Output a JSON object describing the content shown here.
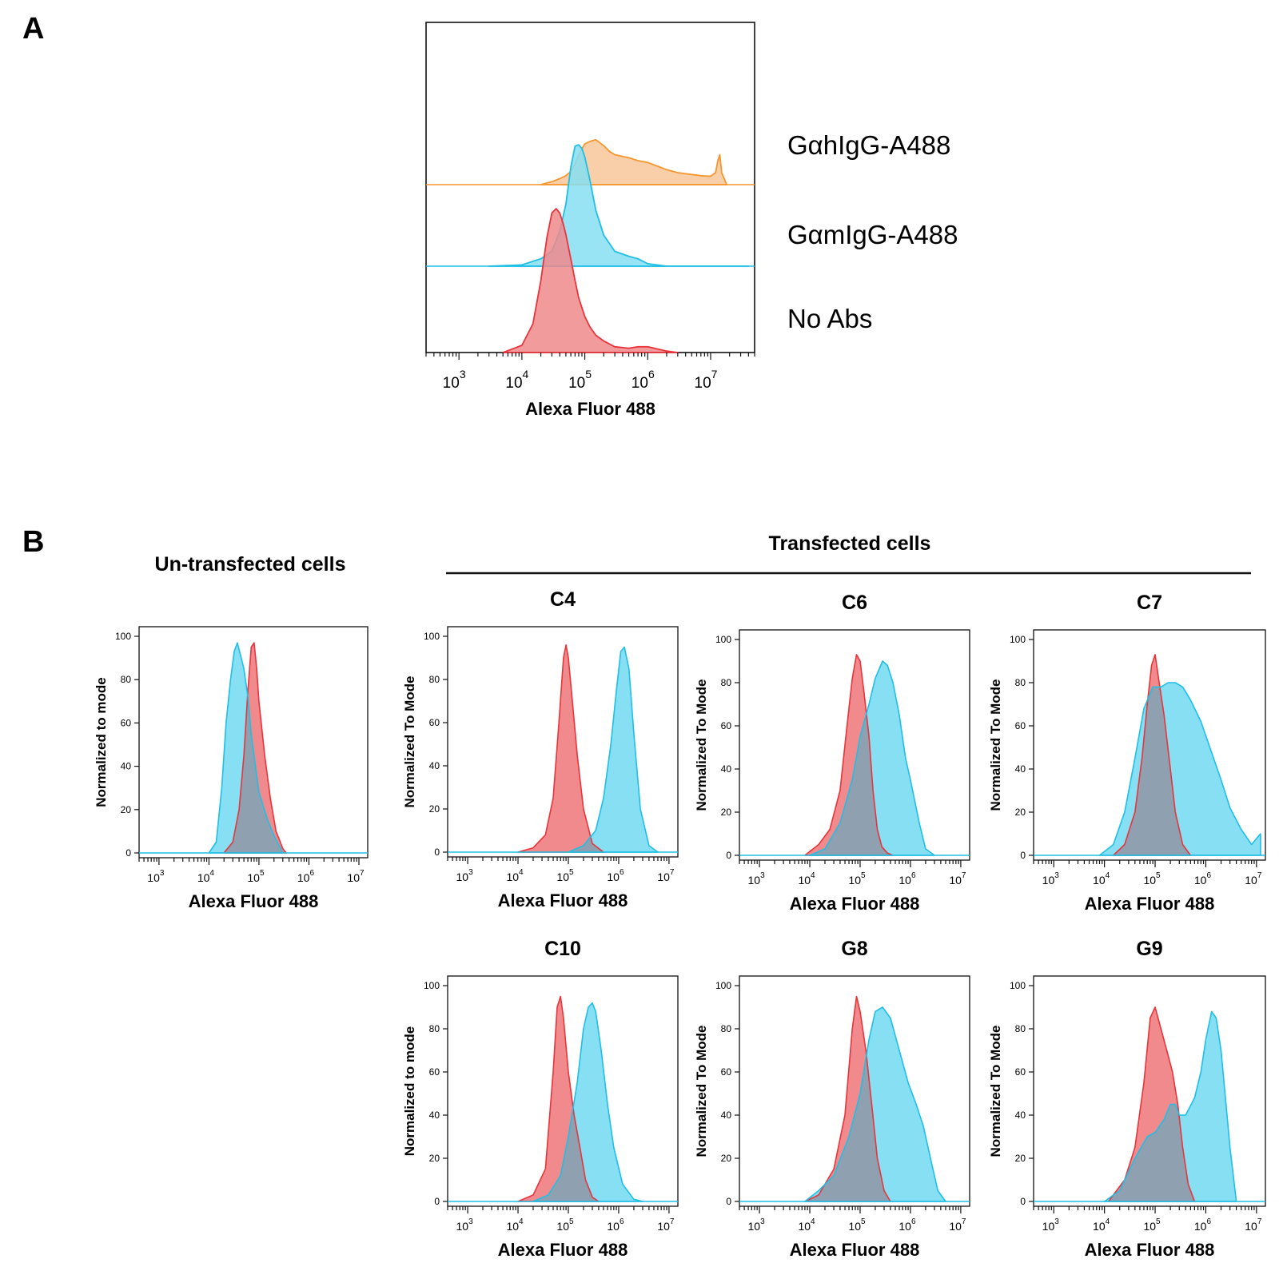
{
  "colors": {
    "red": "#e8343a",
    "red_fill": "#f08a8c",
    "cyan": "#1fbfe6",
    "cyan_fill": "#86dff3",
    "orange": "#f5962e",
    "orange_fill": "#f8c79a",
    "overlap_fill": "#8fa0b0"
  },
  "panel_a": {
    "letter": "A",
    "series_labels": [
      "GαhIgG-A488",
      "GαmIgG-A488",
      "No Abs"
    ]
  },
  "panel_b": {
    "letter": "B",
    "untransfected_title": "Un-transfected cells",
    "transfected_title": "Transfected cells"
  },
  "chart_data": [
    {
      "id": "A",
      "type": "area",
      "subtype": "offset-histogram",
      "xlabel": "Alexa Fluor 488",
      "x_scale": "log",
      "xlim": [
        300,
        50000000
      ],
      "x_ticks": [
        1000,
        10000,
        100000,
        1000000,
        10000000
      ],
      "x_tick_exps": [
        "3",
        "4",
        "5",
        "6",
        "7"
      ],
      "series": [
        {
          "name": "GαhIgG-A488",
          "color": "orange",
          "x": [
            20000,
            30000,
            40000,
            50000,
            60000,
            70000,
            80000,
            90000,
            100000,
            120000,
            150000,
            200000,
            250000,
            300000,
            400000,
            500000,
            700000,
            1000000,
            1500000,
            2000000,
            3000000,
            5000000,
            7000000,
            10000000,
            12000000,
            13000000,
            14000000,
            15000000,
            18000000
          ],
          "y": [
            0,
            5,
            10,
            15,
            22,
            35,
            50,
            60,
            68,
            72,
            75,
            65,
            55,
            50,
            47,
            45,
            40,
            37,
            30,
            25,
            20,
            17,
            15,
            14,
            20,
            40,
            50,
            20,
            0
          ]
        },
        {
          "name": "GαmIgG-A488",
          "color": "cyan",
          "x": [
            3000,
            10000,
            20000,
            30000,
            40000,
            50000,
            60000,
            70000,
            80000,
            90000,
            100000,
            120000,
            150000,
            200000,
            300000,
            500000,
            700000,
            1000000,
            2000000,
            10000000,
            40000000
          ],
          "y": [
            0,
            1,
            6,
            12,
            28,
            50,
            80,
            97,
            98,
            95,
            88,
            70,
            45,
            25,
            12,
            8,
            6,
            2,
            0,
            0,
            0
          ]
        },
        {
          "name": "No Abs",
          "color": "red",
          "x": [
            5000,
            10000,
            15000,
            20000,
            25000,
            30000,
            35000,
            40000,
            45000,
            50000,
            60000,
            70000,
            80000,
            100000,
            120000,
            150000,
            200000,
            300000,
            500000,
            700000,
            1000000,
            2000000,
            3000000
          ],
          "y": [
            0,
            5,
            20,
            50,
            80,
            97,
            100,
            97,
            90,
            82,
            65,
            50,
            38,
            25,
            18,
            12,
            8,
            4,
            3,
            4,
            4,
            1,
            0
          ]
        }
      ]
    },
    {
      "id": "Un-transfected",
      "type": "area",
      "subtype": "overlay-histogram",
      "xlabel": "Alexa Fluor 488",
      "ylabel": "Normalized to mode",
      "x_scale": "log",
      "xlim": [
        400,
        15000000
      ],
      "ylim": [
        0,
        100
      ],
      "x_ticks": [
        1000,
        10000,
        100000,
        1000000,
        10000000
      ],
      "x_tick_exps": [
        "3",
        "4",
        "5",
        "6",
        "7"
      ],
      "y_ticks": [
        "0",
        "20",
        "40",
        "60",
        "80",
        "100"
      ],
      "series": [
        {
          "color": "cyan",
          "x": [
            10000,
            14000,
            18000,
            22000,
            27000,
            32000,
            37000,
            42000,
            50000,
            60000,
            70000,
            85000,
            100000,
            150000,
            200000,
            300000
          ],
          "y": [
            0,
            5,
            30,
            60,
            80,
            93,
            97,
            92,
            85,
            72,
            55,
            40,
            28,
            15,
            8,
            0
          ]
        },
        {
          "color": "red",
          "x": [
            20000,
            30000,
            40000,
            50000,
            60000,
            70000,
            80000,
            90000,
            100000,
            130000,
            170000,
            220000,
            300000,
            350000
          ],
          "y": [
            0,
            5,
            20,
            45,
            75,
            95,
            97,
            85,
            70,
            45,
            25,
            10,
            2,
            0
          ]
        }
      ]
    },
    {
      "id": "C4",
      "title": "C4",
      "type": "area",
      "subtype": "overlay-histogram",
      "xlabel": "Alexa Fluor 488",
      "ylabel": "Normalized To Mode",
      "x_scale": "log",
      "xlim": [
        400,
        15000000
      ],
      "ylim": [
        0,
        100
      ],
      "x_ticks": [
        1000,
        10000,
        100000,
        1000000,
        10000000
      ],
      "x_tick_exps": [
        "3",
        "4",
        "5",
        "6",
        "7"
      ],
      "y_ticks": [
        "0",
        "20",
        "40",
        "60",
        "80",
        "100"
      ],
      "series": [
        {
          "color": "red",
          "x": [
            10000,
            20000,
            35000,
            50000,
            65000,
            80000,
            90000,
            100000,
            120000,
            150000,
            200000,
            300000,
            500000
          ],
          "y": [
            0,
            2,
            8,
            25,
            60,
            90,
            96,
            90,
            70,
            45,
            20,
            4,
            0
          ]
        },
        {
          "color": "cyan",
          "x": [
            100000,
            200000,
            350000,
            500000,
            700000,
            900000,
            1100000,
            1300000,
            1600000,
            2000000,
            2700000,
            4000000,
            6000000
          ],
          "y": [
            0,
            3,
            10,
            25,
            50,
            75,
            93,
            95,
            85,
            55,
            20,
            3,
            0
          ]
        }
      ]
    },
    {
      "id": "C6",
      "title": "C6",
      "type": "area",
      "subtype": "overlay-histogram",
      "xlabel": "Alexa Fluor 488",
      "ylabel": "Normalized To Mode",
      "x_scale": "log",
      "xlim": [
        400,
        15000000
      ],
      "ylim": [
        0,
        100
      ],
      "x_ticks": [
        1000,
        10000,
        100000,
        1000000,
        10000000
      ],
      "x_tick_exps": [
        "3",
        "4",
        "5",
        "6",
        "7"
      ],
      "y_ticks": [
        "0",
        "20",
        "40",
        "60",
        "80",
        "100"
      ],
      "series": [
        {
          "color": "red",
          "x": [
            8000,
            15000,
            25000,
            40000,
            55000,
            70000,
            85000,
            100000,
            120000,
            150000,
            180000,
            220000,
            270000,
            350000,
            450000
          ],
          "y": [
            0,
            5,
            12,
            30,
            60,
            82,
            93,
            90,
            75,
            55,
            30,
            12,
            4,
            1,
            0
          ]
        },
        {
          "color": "cyan",
          "x": [
            10000,
            20000,
            40000,
            70000,
            100000,
            150000,
            200000,
            280000,
            350000,
            450000,
            600000,
            800000,
            1000000,
            1500000,
            2000000,
            3000000
          ],
          "y": [
            0,
            3,
            15,
            35,
            55,
            70,
            82,
            90,
            88,
            80,
            65,
            45,
            35,
            15,
            3,
            0
          ]
        }
      ]
    },
    {
      "id": "C7",
      "title": "C7",
      "type": "area",
      "subtype": "overlay-histogram",
      "xlabel": "Alexa Fluor 488",
      "ylabel": "Normalized To Mode",
      "x_scale": "log",
      "xlim": [
        400,
        15000000
      ],
      "ylim": [
        0,
        100
      ],
      "x_ticks": [
        1000,
        10000,
        100000,
        1000000,
        10000000
      ],
      "x_tick_exps": [
        "3",
        "4",
        "5",
        "6",
        "7"
      ],
      "y_ticks": [
        "0",
        "20",
        "40",
        "60",
        "80",
        "100"
      ],
      "series": [
        {
          "color": "red",
          "x": [
            15000,
            25000,
            40000,
            55000,
            70000,
            85000,
            100000,
            120000,
            150000,
            200000,
            250000,
            350000,
            500000
          ],
          "y": [
            0,
            5,
            20,
            45,
            70,
            88,
            93,
            80,
            65,
            40,
            20,
            5,
            0
          ]
        },
        {
          "color": "cyan",
          "x": [
            8000,
            15000,
            25000,
            40000,
            60000,
            90000,
            130000,
            180000,
            250000,
            350000,
            500000,
            800000,
            1200000,
            2000000,
            3000000,
            5000000,
            8000000,
            12000000
          ],
          "y": [
            0,
            5,
            20,
            45,
            68,
            78,
            78,
            80,
            80,
            78,
            72,
            62,
            50,
            35,
            22,
            12,
            5,
            10
          ]
        }
      ]
    },
    {
      "id": "C10",
      "title": "C10",
      "type": "area",
      "subtype": "overlay-histogram",
      "xlabel": "Alexa Fluor 488",
      "ylabel": "Normalized to mode",
      "x_scale": "log",
      "xlim": [
        400,
        15000000
      ],
      "ylim": [
        0,
        100
      ],
      "x_ticks": [
        1000,
        10000,
        100000,
        1000000,
        10000000
      ],
      "x_tick_exps": [
        "3",
        "4",
        "5",
        "6",
        "7"
      ],
      "y_ticks": [
        "0",
        "20",
        "40",
        "60",
        "80",
        "100"
      ],
      "series": [
        {
          "color": "red",
          "x": [
            10000,
            20000,
            35000,
            50000,
            60000,
            70000,
            80000,
            100000,
            130000,
            170000,
            220000,
            300000,
            400000
          ],
          "y": [
            0,
            3,
            15,
            60,
            90,
            95,
            85,
            60,
            40,
            25,
            10,
            2,
            0
          ]
        },
        {
          "color": "cyan",
          "x": [
            20000,
            40000,
            70000,
            100000,
            150000,
            200000,
            250000,
            300000,
            350000,
            450000,
            600000,
            800000,
            1200000,
            2000000,
            3000000
          ],
          "y": [
            0,
            3,
            12,
            30,
            55,
            80,
            90,
            92,
            88,
            70,
            45,
            25,
            8,
            1,
            0
          ]
        }
      ]
    },
    {
      "id": "G8",
      "title": "G8",
      "type": "area",
      "subtype": "overlay-histogram",
      "xlabel": "Alexa Fluor 488",
      "ylabel": "Normalized To Mode",
      "x_scale": "log",
      "xlim": [
        400,
        15000000
      ],
      "ylim": [
        0,
        100
      ],
      "x_ticks": [
        1000,
        10000,
        100000,
        1000000,
        10000000
      ],
      "x_tick_exps": [
        "3",
        "4",
        "5",
        "6",
        "7"
      ],
      "y_ticks": [
        "0",
        "20",
        "40",
        "60",
        "80",
        "100"
      ],
      "series": [
        {
          "color": "red",
          "x": [
            8000,
            15000,
            30000,
            50000,
            70000,
            85000,
            100000,
            130000,
            170000,
            220000,
            300000,
            400000
          ],
          "y": [
            0,
            3,
            15,
            40,
            80,
            95,
            88,
            70,
            45,
            20,
            5,
            0
          ]
        },
        {
          "color": "cyan",
          "x": [
            8000,
            15000,
            30000,
            60000,
            100000,
            150000,
            200000,
            280000,
            400000,
            600000,
            900000,
            1300000,
            1800000,
            2500000,
            3500000,
            5000000
          ],
          "y": [
            0,
            5,
            12,
            30,
            50,
            75,
            88,
            90,
            85,
            70,
            55,
            45,
            35,
            20,
            5,
            0
          ]
        }
      ]
    },
    {
      "id": "G9",
      "title": "G9",
      "type": "area",
      "subtype": "overlay-histogram",
      "xlabel": "Alexa Fluor 488",
      "ylabel": "Normalized To Mode",
      "x_scale": "log",
      "xlim": [
        400,
        15000000
      ],
      "ylim": [
        0,
        100
      ],
      "x_ticks": [
        1000,
        10000,
        100000,
        1000000,
        10000000
      ],
      "x_tick_exps": [
        "3",
        "4",
        "5",
        "6",
        "7"
      ],
      "y_ticks": [
        "0",
        "20",
        "40",
        "60",
        "80",
        "100"
      ],
      "series": [
        {
          "color": "red",
          "x": [
            12000,
            25000,
            40000,
            60000,
            80000,
            100000,
            130000,
            170000,
            220000,
            280000,
            350000,
            450000,
            600000
          ],
          "y": [
            0,
            10,
            25,
            55,
            85,
            90,
            80,
            70,
            60,
            45,
            25,
            8,
            0
          ]
        },
        {
          "color": "cyan",
          "x": [
            10000,
            20000,
            40000,
            70000,
            100000,
            150000,
            200000,
            250000,
            300000,
            400000,
            600000,
            800000,
            1000000,
            1300000,
            1600000,
            2000000,
            3000000,
            4000000
          ],
          "y": [
            0,
            5,
            20,
            30,
            32,
            38,
            45,
            45,
            40,
            40,
            48,
            60,
            75,
            88,
            85,
            70,
            25,
            0
          ]
        }
      ]
    }
  ]
}
